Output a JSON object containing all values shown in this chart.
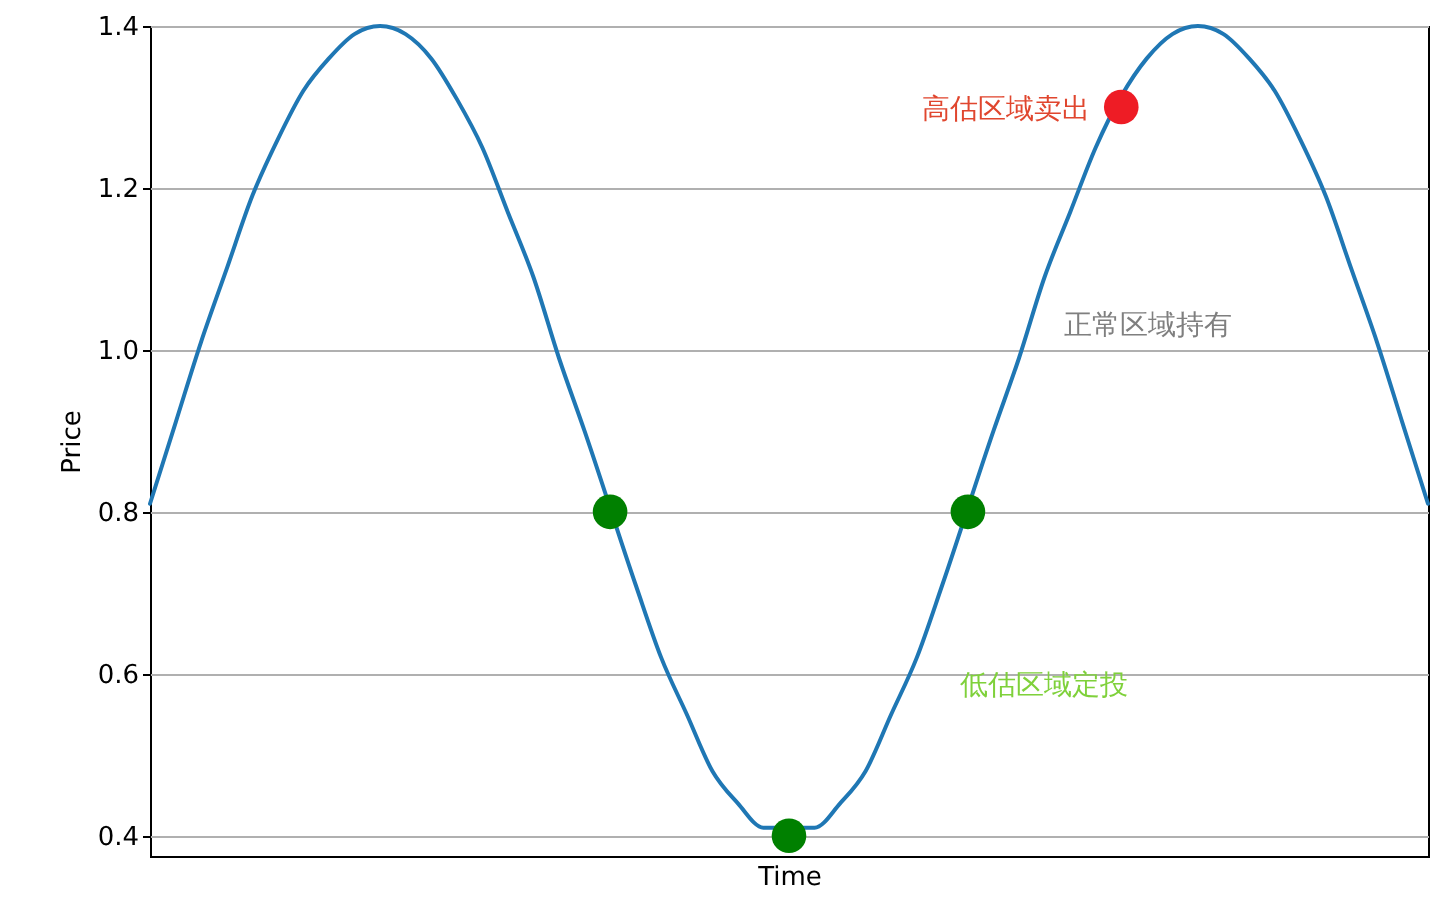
{
  "chart_data": {
    "type": "line",
    "xlabel": "Time",
    "ylabel": "Price",
    "categories": [
      null,
      null,
      null,
      null,
      null,
      null,
      null,
      null,
      null,
      null,
      null,
      null,
      null,
      null,
      null,
      null,
      null,
      null,
      null,
      null,
      null,
      null,
      null,
      null,
      null,
      null,
      null,
      null,
      null,
      null,
      null,
      null,
      null,
      null,
      null,
      null,
      null,
      null,
      null,
      null,
      null,
      null,
      null,
      null,
      null,
      null,
      null,
      null,
      null,
      null,
      null
    ],
    "series": [
      {
        "color": "#1f77b4",
        "values": [
          0.81,
          0.91,
          1.01,
          1.1,
          1.19,
          1.26,
          1.32,
          1.36,
          1.39,
          1.4,
          1.39,
          1.36,
          1.31,
          1.25,
          1.17,
          1.09,
          0.99,
          0.9,
          null,
          0.71,
          0.62,
          0.55,
          0.48,
          0.44,
          0.41,
          null,
          0.41,
          0.44,
          0.48,
          0.55,
          0.62,
          0.71,
          null,
          0.9,
          0.99,
          1.09,
          1.17,
          1.25,
          null,
          1.36,
          1.39,
          1.4,
          1.39,
          1.36,
          1.32,
          1.26,
          1.19,
          1.1,
          1.01,
          0.91,
          0.81
        ]
      },
      {
        "type": "scatter",
        "marker": "circle",
        "color": "#008000",
        "values": [
          null,
          null,
          null,
          null,
          null,
          null,
          null,
          null,
          null,
          null,
          null,
          null,
          null,
          null,
          null,
          null,
          null,
          null,
          0.8,
          null,
          null,
          null,
          null,
          null,
          null,
          0.4,
          null,
          null,
          null,
          null,
          null,
          null,
          0.8,
          null,
          null,
          null,
          null,
          null,
          null,
          null,
          null,
          null,
          null,
          null,
          null,
          null,
          null,
          null,
          null,
          null,
          null
        ]
      },
      {
        "type": "scatter",
        "marker": "circle",
        "color": "#ee1c25",
        "values": [
          null,
          null,
          null,
          null,
          null,
          null,
          null,
          null,
          null,
          null,
          null,
          null,
          null,
          null,
          null,
          null,
          null,
          null,
          null,
          null,
          null,
          null,
          null,
          null,
          null,
          null,
          null,
          null,
          null,
          null,
          null,
          null,
          null,
          null,
          null,
          null,
          null,
          null,
          1.3,
          null,
          null,
          null,
          null,
          null,
          null,
          null,
          null,
          null,
          null,
          null,
          null
        ]
      }
    ],
    "annotations": [
      "高估区域卖出",
      "正常区域持有",
      "低估区域定投"
    ],
    "ylim": [
      0.375,
      1.4
    ],
    "yticks": [
      0.4,
      0.6,
      0.8,
      {
        "value": 1,
        "label": "1.0"
      },
      1.2,
      1.4
    ],
    "grid": "y",
    "tick_labels": "y",
    "line_style": "solid"
  }
}
